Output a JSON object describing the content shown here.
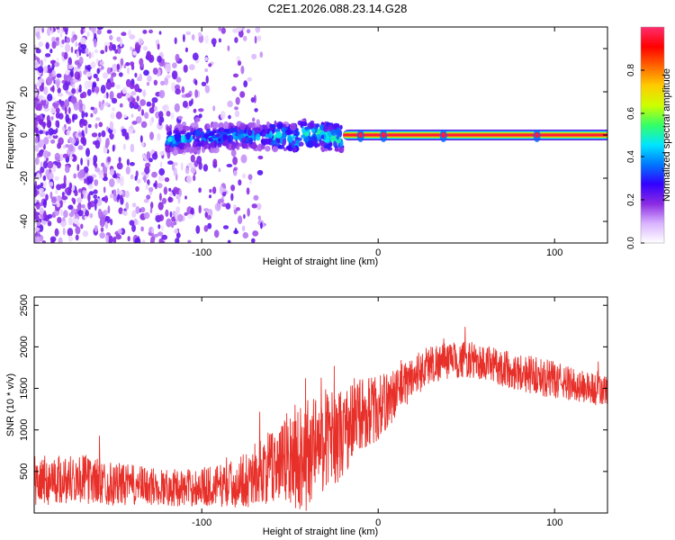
{
  "title": "C2E1.2026.088.23.14.G28",
  "chart_data": [
    {
      "type": "heatmap",
      "title": "C2E1.2026.088.23.14.G28",
      "xlabel": "Height of straight line (km)",
      "ylabel": "Frequency (Hz)",
      "xlim": [
        -195,
        130
      ],
      "ylim": [
        -50,
        50
      ],
      "xticks": [
        -100,
        0,
        100
      ],
      "xtick_labels": [
        "-100",
        "0",
        "100"
      ],
      "yticks": [
        -40,
        -20,
        0,
        20,
        40
      ],
      "ytick_labels": [
        "-40",
        "-20",
        "0",
        "20",
        "40"
      ],
      "colorbar": {
        "label": "Normalized spectral amplitude",
        "range": [
          0.0,
          1.0
        ],
        "ticks": [
          0.0,
          0.2,
          0.4,
          0.6,
          0.8
        ],
        "tick_labels": [
          "0.0",
          "0.2",
          "0.4",
          "0.6",
          "0.8"
        ],
        "colormap": [
          "#ffffff",
          "#d9b3ff",
          "#8a2be2",
          "#3300ff",
          "#0077ff",
          "#00e5ff",
          "#33ff66",
          "#ccff00",
          "#ffcc00",
          "#ff6600",
          "#ff0000",
          "#ff2d6f"
        ]
      },
      "features": [
        {
          "name": "noise region",
          "x_range": [
            -195,
            -75
          ],
          "freq_range": [
            -50,
            50
          ],
          "amplitude": 0.15
        },
        {
          "name": "carrier line",
          "x_range": [
            -20,
            130
          ],
          "freq": 0,
          "amplitude": 0.95
        },
        {
          "name": "drifting segment",
          "x_range": [
            -120,
            -20
          ],
          "freq_range": [
            -6,
            6
          ],
          "amplitude": 0.35
        }
      ]
    },
    {
      "type": "line",
      "xlabel": "Height of straight line (km)",
      "ylabel": "SNR (10 * v/v)",
      "xlim": [
        -195,
        130
      ],
      "ylim": [
        0,
        2600
      ],
      "xticks": [
        -100,
        0,
        100
      ],
      "xtick_labels": [
        "-100",
        "0",
        "100"
      ],
      "yticks": [
        500,
        1000,
        1500,
        2000,
        2500
      ],
      "ytick_labels": [
        "500",
        "1000",
        "1500",
        "2000",
        "2500"
      ],
      "color": "#e8302a",
      "series": [
        {
          "name": "SNR",
          "x": [
            -195,
            -170,
            -150,
            -130,
            -110,
            -90,
            -80,
            -70,
            -60,
            -50,
            -40,
            -30,
            -20,
            -10,
            0,
            10,
            20,
            30,
            40,
            50,
            60,
            70,
            80,
            90,
            100,
            110,
            120,
            130
          ],
          "mean": [
            380,
            420,
            350,
            320,
            300,
            330,
            360,
            460,
            560,
            650,
            720,
            900,
            950,
            1200,
            1250,
            1450,
            1650,
            1800,
            1830,
            1850,
            1800,
            1750,
            1700,
            1650,
            1600,
            1550,
            1500,
            1450
          ],
          "range": [
            300,
            300,
            260,
            230,
            220,
            250,
            300,
            380,
            450,
            600,
            700,
            600,
            550,
            450,
            400,
            300,
            260,
            240,
            220,
            220,
            220,
            220,
            230,
            230,
            220,
            200,
            200,
            200
          ]
        }
      ]
    }
  ]
}
